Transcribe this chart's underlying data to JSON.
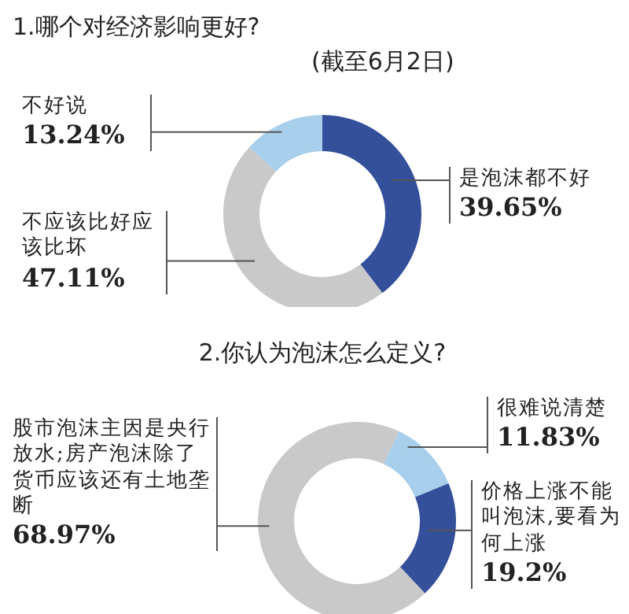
{
  "chart_data": [
    {
      "type": "donut",
      "title": "1.哪个对经济影响更好?",
      "annotations": [
        "(截至6月2日)"
      ],
      "categories": [
        "是泡沫都不好",
        "不应该比好应该比坏",
        "不好说"
      ],
      "values": [
        39.65,
        47.11,
        13.24
      ],
      "colors": [
        "#34509b",
        "#c9c9c9",
        "#a8cfeb"
      ],
      "value_labels": [
        "39.65%",
        "47.11%",
        "13.24%"
      ],
      "legend": false
    },
    {
      "type": "donut",
      "title": "2.你认为泡沫怎么定义?",
      "categories": [
        "很难说清楚",
        "价格上涨不能叫泡沫,要看为何上涨",
        "股市泡沫主因是央行放水;房产泡沫除了货币应该还有土地垄断"
      ],
      "values": [
        11.83,
        19.2,
        68.97
      ],
      "colors": [
        "#a8cfeb",
        "#34509b",
        "#c9c9c9"
      ],
      "value_labels": [
        "11.83%",
        "19.2%",
        "68.97%"
      ],
      "legend": false
    }
  ]
}
